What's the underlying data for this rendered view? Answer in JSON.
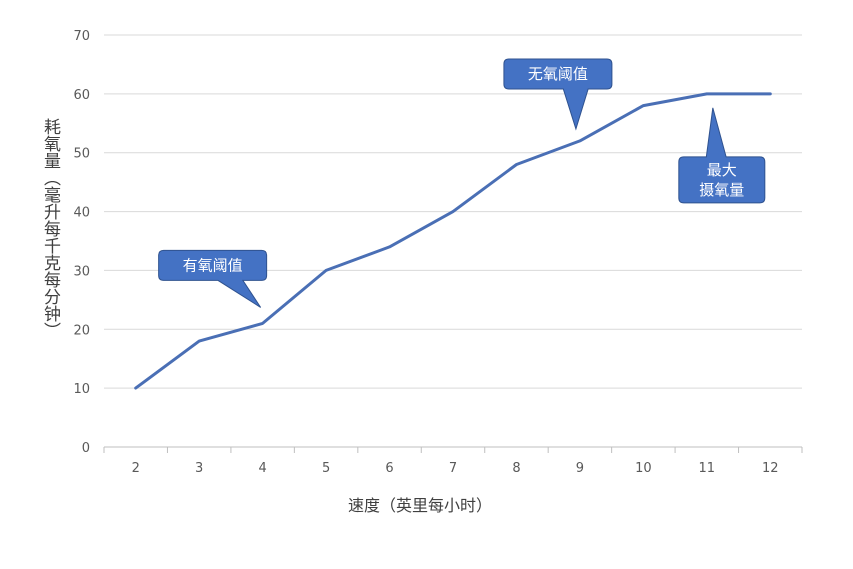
{
  "chart_data": {
    "type": "line",
    "xlabel": "速度（英里每小时）",
    "ylabel": "耗氧量（毫升每千克每分钟）",
    "categories": [
      "2",
      "3",
      "4",
      "5",
      "6",
      "7",
      "8",
      "9",
      "10",
      "11",
      "12"
    ],
    "series": [
      {
        "values": [
          10,
          18,
          21,
          30,
          34,
          40,
          48,
          52,
          58,
          60,
          60
        ]
      }
    ],
    "ylim": [
      0,
      70
    ],
    "yticks": [
      0,
      10,
      20,
      30,
      40,
      50,
      60,
      70
    ],
    "grid": true,
    "colors": {
      "line": "#4A6FB5",
      "grid": "#D9D9D9",
      "callout_fill": "#4472C4",
      "callout_stroke": "#2F528F"
    },
    "annotations": [
      {
        "text": [
          "有氧阈值"
        ],
        "x": "4",
        "y": 21
      },
      {
        "text": [
          "无氧阈值"
        ],
        "x": "9",
        "y": 52
      },
      {
        "text": [
          "最大",
          "摄氧量"
        ],
        "x": "11",
        "y": 60
      }
    ]
  }
}
